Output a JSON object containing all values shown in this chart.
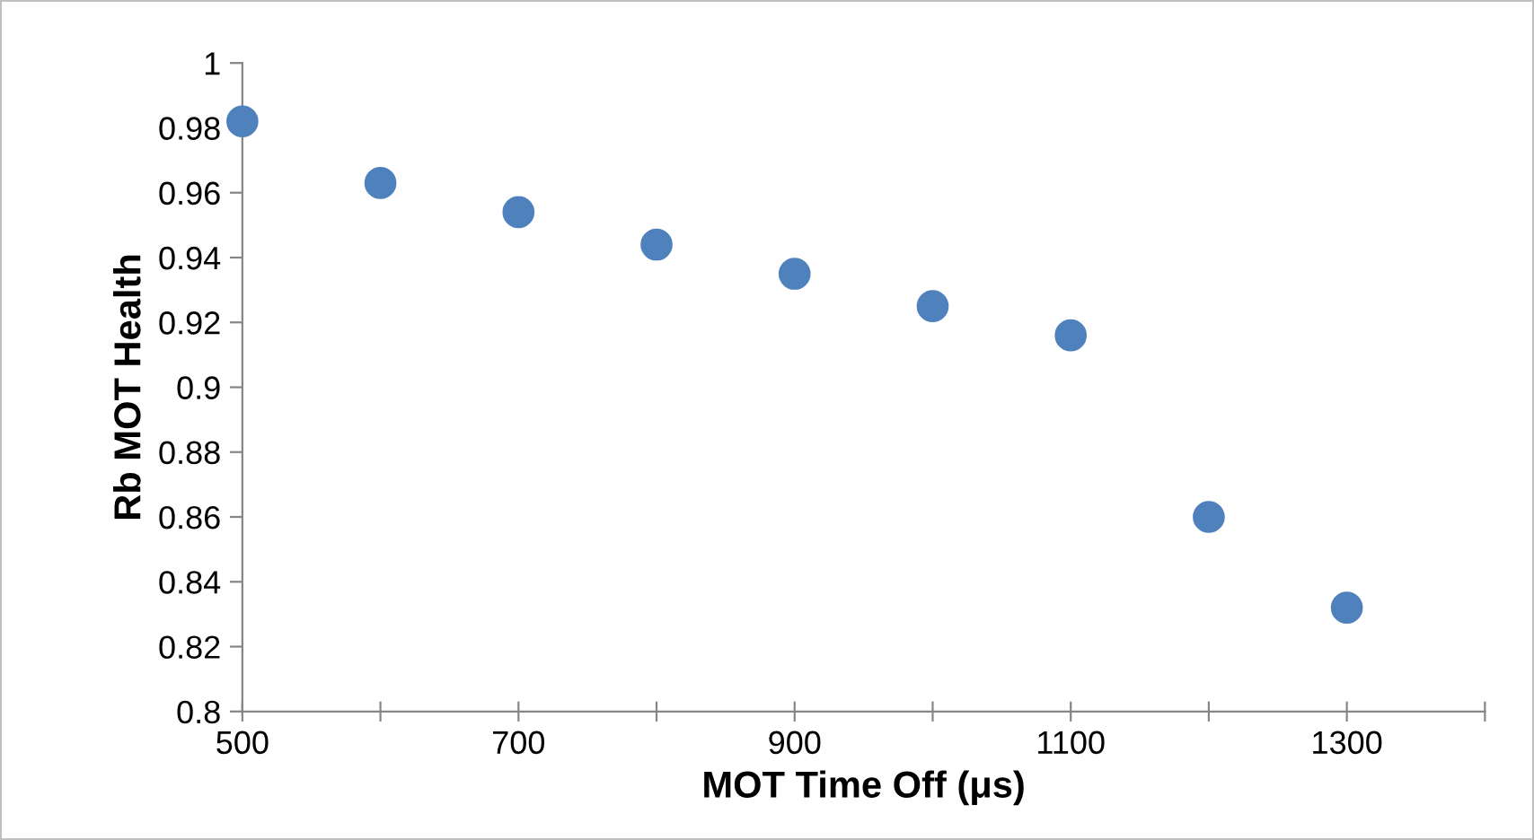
{
  "chart_data": {
    "type": "scatter",
    "xlabel": "MOT Time Off (μs)",
    "ylabel": "Rb MOT Health",
    "x": [
      500,
      600,
      700,
      800,
      900,
      1000,
      1100,
      1200,
      1300
    ],
    "series": [
      {
        "color": "#4f81bd",
        "values": [
          0.982,
          0.963,
          0.954,
          0.944,
          0.935,
          0.925,
          0.916,
          0.86,
          0.832
        ]
      }
    ],
    "xlim": [
      500,
      1400
    ],
    "xticks": [
      500,
      {
        "value": 600,
        "label": null
      },
      700,
      {
        "value": 800,
        "label": null
      },
      900,
      {
        "value": 1000,
        "label": null
      },
      1100,
      {
        "value": 1200,
        "label": null
      },
      1300,
      {
        "value": 1400,
        "label": null
      }
    ],
    "ylim": [
      0.8,
      1
    ],
    "yticks": [
      0.8,
      0.82,
      0.84,
      0.86,
      0.88,
      0.9,
      0.92,
      0.94,
      0.96,
      0.98,
      1
    ],
    "grid": false,
    "legend": false,
    "marker": "circle"
  }
}
